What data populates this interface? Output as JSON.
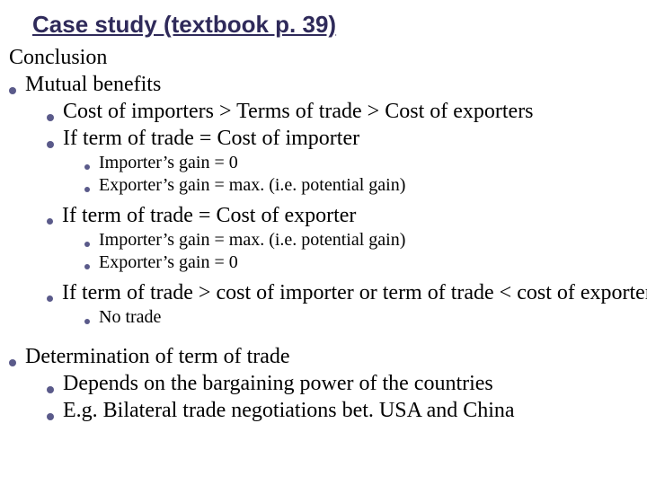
{
  "colors": {
    "title": "#2f2a5a",
    "bullet": "#5a5a8a",
    "text": "#000000",
    "background": "#ffffff"
  },
  "font_sizes": {
    "title": 26,
    "level0": 24,
    "level1": 24,
    "level2": 20
  },
  "title": "Case study (textbook p. 39)",
  "conclusion_label": "Conclusion",
  "mutual_benefits": {
    "label": "Mutual benefits",
    "items": [
      "Cost of importers > Terms of trade > Cost of exporters",
      "If term of trade = Cost of importer"
    ],
    "sub_importer": [
      "Importer’s gain = 0",
      "Exporter’s gain = max. (i.e. potential gain)"
    ],
    "exporter_case": {
      "label": "If term of trade = Cost of exporter",
      "items": [
        "Importer’s gain = max. (i.e. potential gain)",
        "Exporter’s gain = 0"
      ]
    },
    "notrade_case": {
      "label": "If term of trade > cost of importer or term of trade < cost of exporter",
      "items": [
        "No trade"
      ]
    }
  },
  "determination": {
    "label": "Determination of term of trade",
    "items": [
      "Depends on the bargaining power of the countries",
      "E.g. Bilateral trade negotiations bet. USA and China"
    ]
  }
}
